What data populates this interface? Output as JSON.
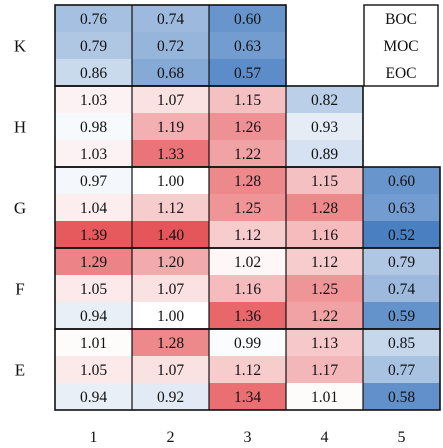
{
  "chart_data": {
    "type": "heatmap",
    "title": "",
    "xlabel": "",
    "ylabel": "",
    "columns": [
      "1",
      "2",
      "3",
      "4",
      "5"
    ],
    "groups": [
      {
        "label": "K",
        "values": [
          [
            0.76,
            0.74,
            0.6,
            null,
            null
          ],
          [
            0.79,
            0.72,
            0.63,
            null,
            null
          ],
          [
            0.86,
            0.68,
            0.57,
            null,
            null
          ]
        ]
      },
      {
        "label": "H",
        "values": [
          [
            1.03,
            1.07,
            1.15,
            0.82,
            null
          ],
          [
            0.98,
            1.19,
            1.26,
            0.93,
            null
          ],
          [
            1.03,
            1.33,
            1.22,
            0.89,
            null
          ]
        ]
      },
      {
        "label": "G",
        "values": [
          [
            0.97,
            1.0,
            1.28,
            1.15,
            0.6
          ],
          [
            1.04,
            1.12,
            1.25,
            1.28,
            0.63
          ],
          [
            1.39,
            1.4,
            1.12,
            1.16,
            0.52
          ]
        ]
      },
      {
        "label": "F",
        "values": [
          [
            1.29,
            1.2,
            1.02,
            1.12,
            0.79
          ],
          [
            1.05,
            1.07,
            1.16,
            1.25,
            0.74
          ],
          [
            0.94,
            1.0,
            1.36,
            1.22,
            0.59
          ]
        ]
      },
      {
        "label": "E",
        "values": [
          [
            1.01,
            1.28,
            0.99,
            1.13,
            0.85
          ],
          [
            1.05,
            1.07,
            1.12,
            1.17,
            0.77
          ],
          [
            0.94,
            0.92,
            1.34,
            1.01,
            0.58
          ]
        ]
      }
    ],
    "legend": {
      "position": "top-right",
      "entries": [
        "BOC",
        "MOC",
        "EOC"
      ]
    },
    "color_scale": {
      "low": "#4a80c2",
      "mid": "#ffffff",
      "high": "#e5565a",
      "low_value": 0.52,
      "mid_value": 1.0,
      "high_value": 1.4
    }
  }
}
